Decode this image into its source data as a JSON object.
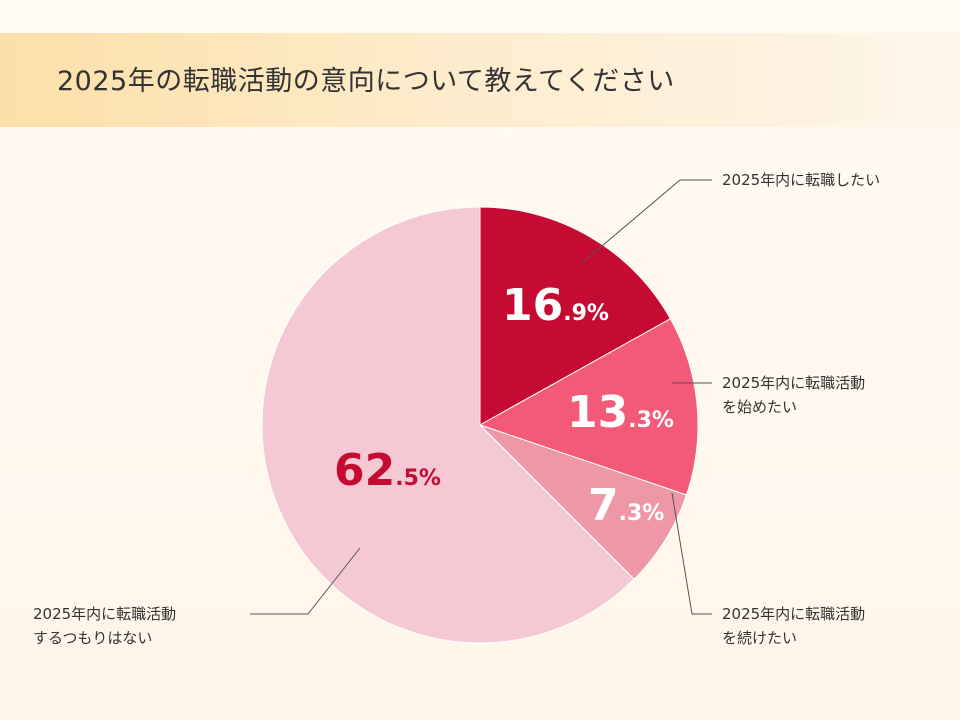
{
  "title": "2025年の転職活動の意向について教えてください",
  "chart_data": {
    "type": "pie",
    "slices": [
      {
        "label_lines": [
          "2025年内に転職したい"
        ],
        "value": 16.9,
        "int": "16",
        "dec": ".9%",
        "color": "#c60b33",
        "text_color": "#ffffff"
      },
      {
        "label_lines": [
          "2025年内に転職活動",
          "を始めたい"
        ],
        "value": 13.3,
        "int": "13",
        "dec": ".3%",
        "color": "#f25a78",
        "text_color": "#ffffff"
      },
      {
        "label_lines": [
          "2025年内に転職活動",
          "を続けたい"
        ],
        "value": 7.3,
        "int": "7",
        "dec": ".3%",
        "color": "#ee98a7",
        "text_color": "#ffffff"
      },
      {
        "label_lines": [
          "2025年内に転職活動",
          "するつもりはない"
        ],
        "value": 62.5,
        "int": "62",
        "dec": ".5%",
        "color": "#f5c9d4",
        "text_color": "#c60b33"
      }
    ]
  }
}
